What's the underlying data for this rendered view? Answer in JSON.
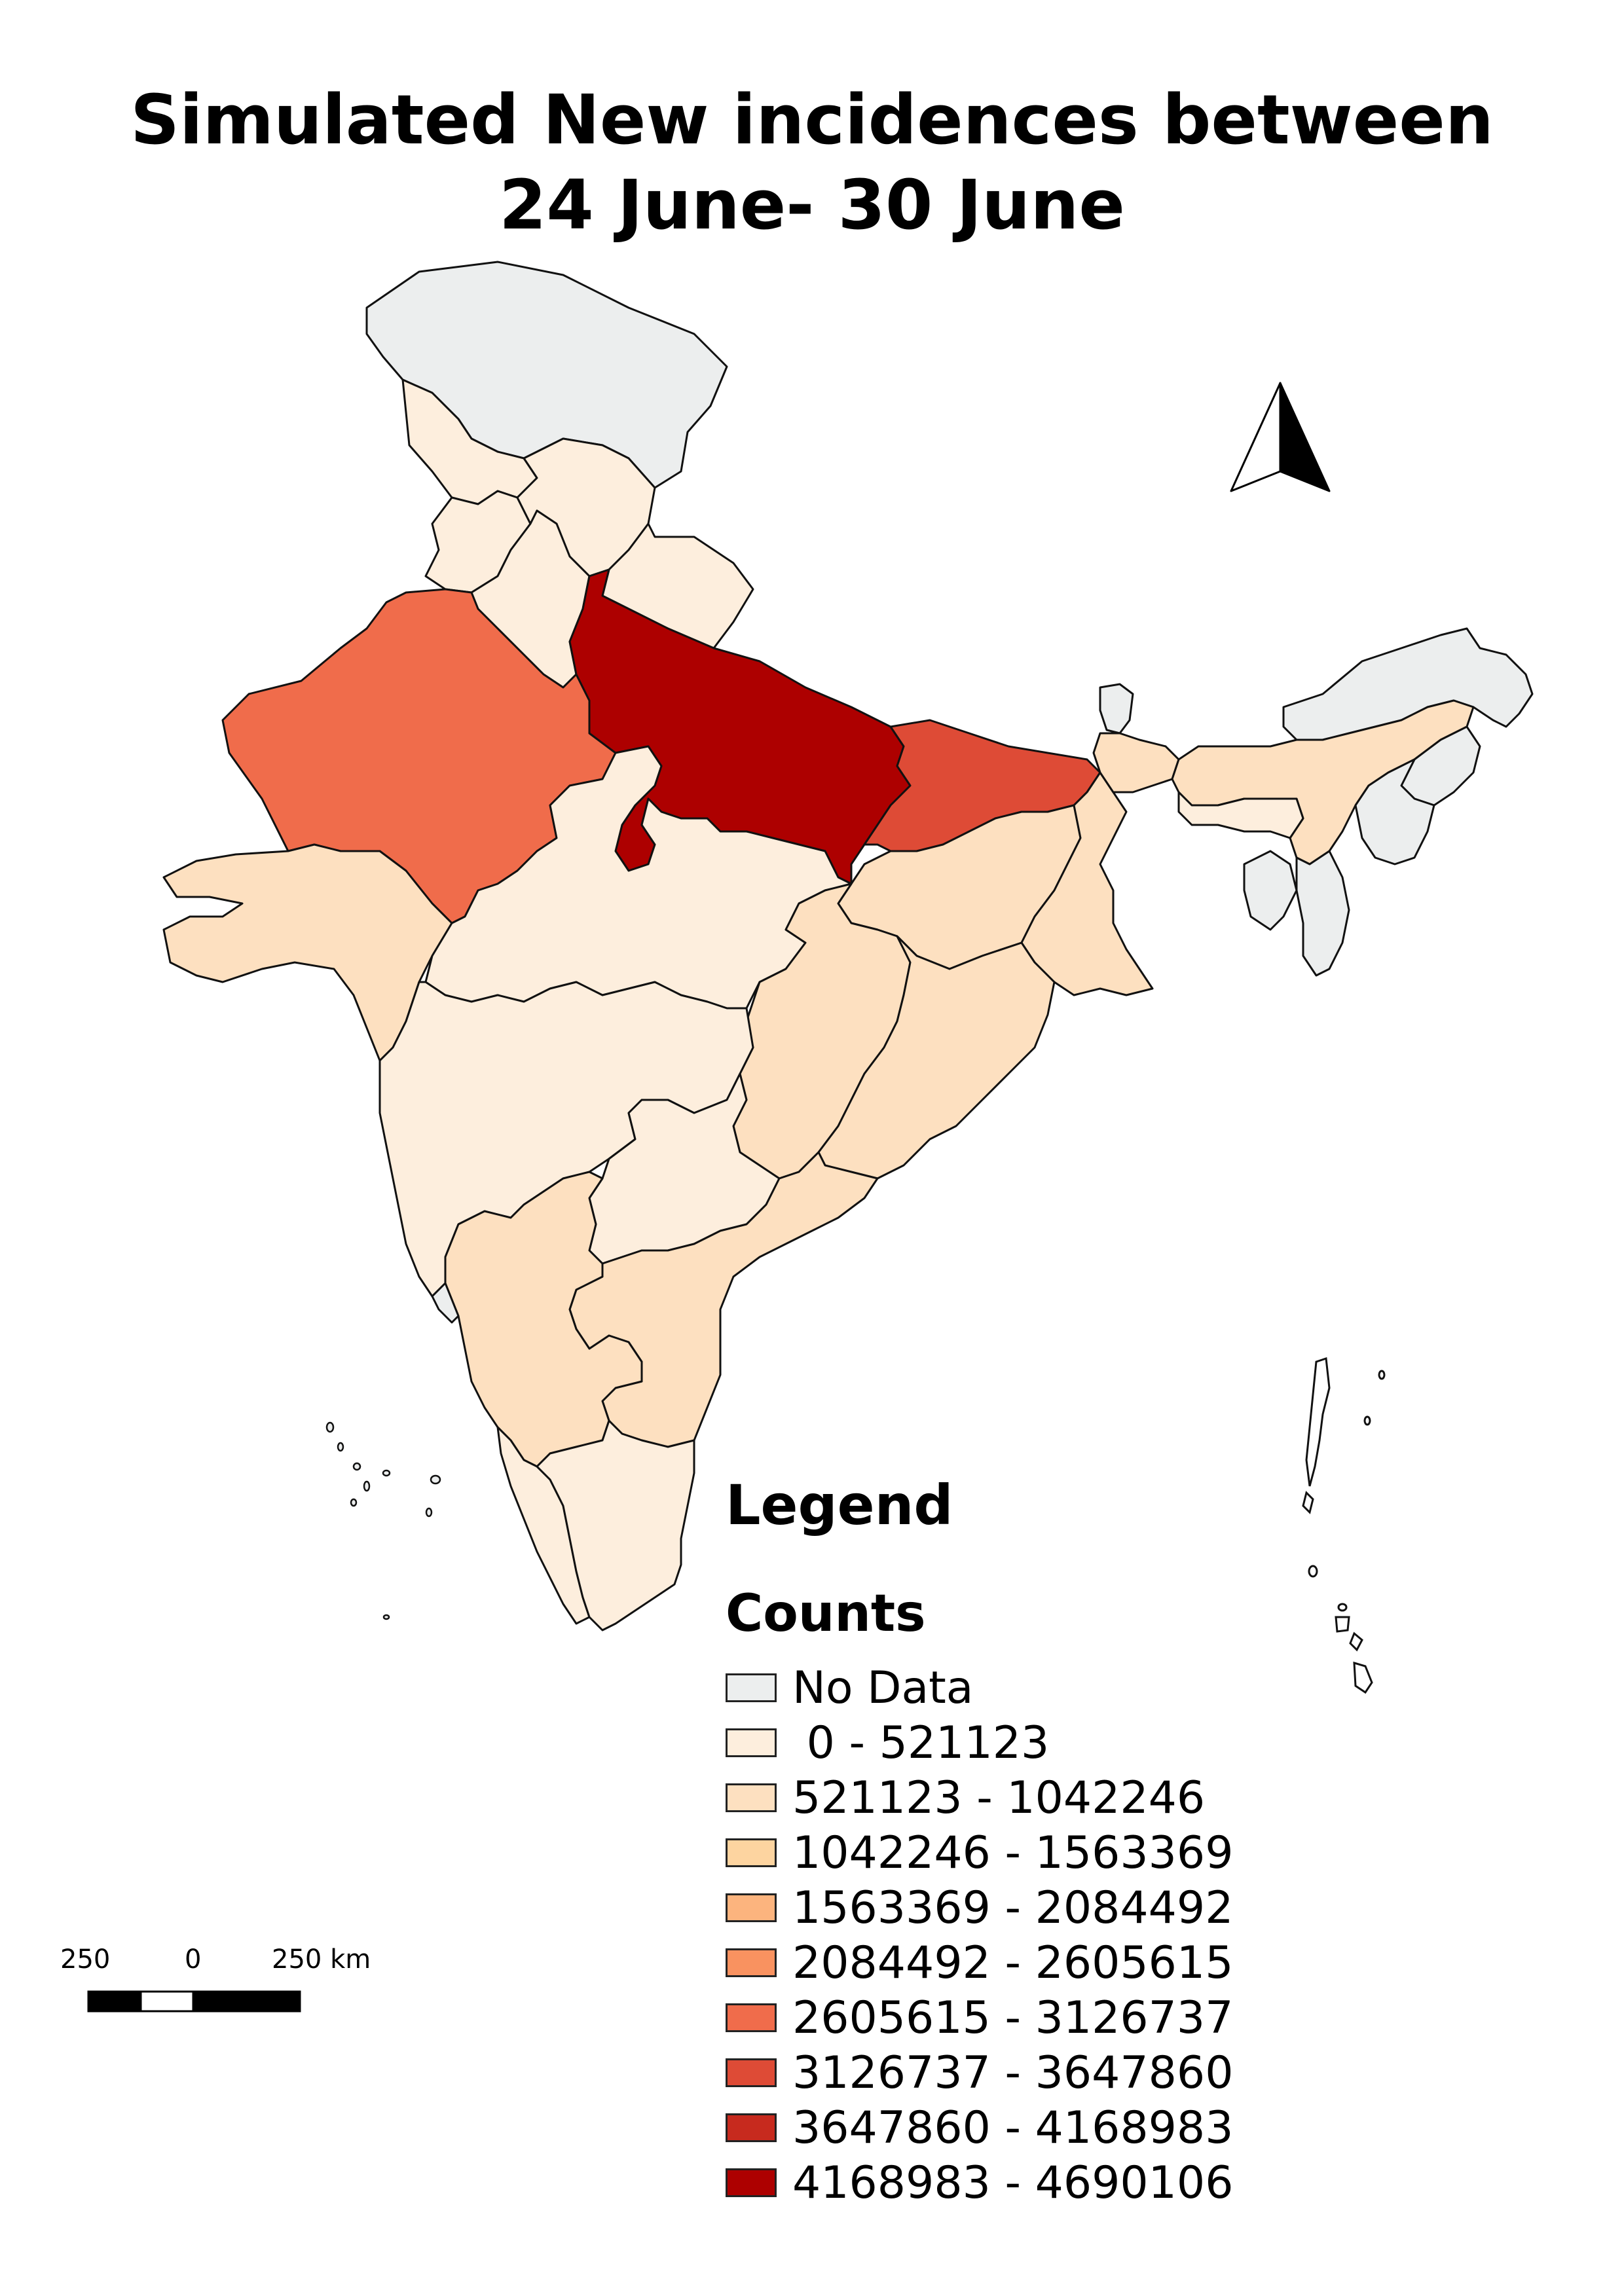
{
  "title": {
    "line1": "Simulated New incidences between",
    "line2": "24 June- 30 June"
  },
  "legend": {
    "heading": "Legend",
    "subheading": "Counts",
    "classes": [
      {
        "label": "No Data",
        "color": "#eceeee"
      },
      {
        "label": " 0 - 521123",
        "color": "#fdeedd"
      },
      {
        "label": "521123 - 1042246",
        "color": "#fde0c0"
      },
      {
        "label": "1042246 - 1563369",
        "color": "#fdd4a0"
      },
      {
        "label": "1563369 - 2084492",
        "color": "#fcb47e"
      },
      {
        "label": "2084492 - 2605615",
        "color": "#f99260"
      },
      {
        "label": "2605615 - 3126737",
        "color": "#f06c4b"
      },
      {
        "label": "3126737 - 3647860",
        "color": "#de4b36"
      },
      {
        "label": "3647860 - 4168983",
        "color": "#c72a1e"
      },
      {
        "label": "4168983 - 4690106",
        "color": "#ad0000"
      }
    ]
  },
  "scale_bar": {
    "left_label": "250",
    "mid_label": "0",
    "right_label": "250 km"
  },
  "north_arrow": {
    "icon": "north-arrow-icon"
  },
  "regions": [
    {
      "name": "Jammu and Kashmir / Ladakh",
      "class": "No Data"
    },
    {
      "name": "Himachal Pradesh",
      "class": "0 - 521123"
    },
    {
      "name": "Punjab",
      "class": "0 - 521123"
    },
    {
      "name": "Haryana",
      "class": "0 - 521123"
    },
    {
      "name": "Uttarakhand",
      "class": "0 - 521123"
    },
    {
      "name": "Rajasthan",
      "class": "2605615 - 3126737"
    },
    {
      "name": "Uttar Pradesh",
      "class": "4168983 - 4690106"
    },
    {
      "name": "Bihar",
      "class": "3126737 - 3647860"
    },
    {
      "name": "Gujarat",
      "class": "521123 - 1042246"
    },
    {
      "name": "Madhya Pradesh",
      "class": "0 - 521123"
    },
    {
      "name": "Maharashtra",
      "class": "0 - 521123"
    },
    {
      "name": "Chhattisgarh",
      "class": "521123 - 1042246"
    },
    {
      "name": "Jharkhand",
      "class": "521123 - 1042246"
    },
    {
      "name": "West Bengal",
      "class": "521123 - 1042246"
    },
    {
      "name": "Odisha",
      "class": "521123 - 1042246"
    },
    {
      "name": "Telangana",
      "class": "0 - 521123"
    },
    {
      "name": "Andhra Pradesh",
      "class": "521123 - 1042246"
    },
    {
      "name": "Karnataka",
      "class": "521123 - 1042246"
    },
    {
      "name": "Goa",
      "class": "No Data"
    },
    {
      "name": "Kerala",
      "class": "0 - 521123"
    },
    {
      "name": "Tamil Nadu",
      "class": "0 - 521123"
    },
    {
      "name": "Sikkim",
      "class": "No Data"
    },
    {
      "name": "Assam",
      "class": "521123 - 1042246"
    },
    {
      "name": "Arunachal Pradesh",
      "class": "No Data"
    },
    {
      "name": "Meghalaya",
      "class": "0 - 521123"
    },
    {
      "name": "Nagaland",
      "class": "No Data"
    },
    {
      "name": "Manipur",
      "class": "No Data"
    },
    {
      "name": "Mizoram",
      "class": "No Data"
    },
    {
      "name": "Tripura",
      "class": "No Data"
    }
  ]
}
